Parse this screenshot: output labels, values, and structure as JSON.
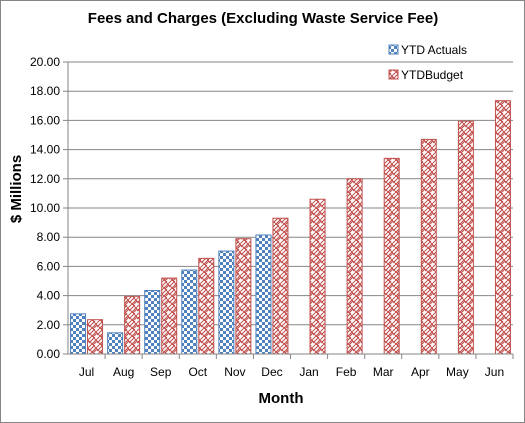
{
  "chart_data": {
    "type": "bar",
    "title": "Fees and Charges (Excluding  Waste Service Fee)",
    "xlabel": "Month",
    "ylabel": "$ Millions",
    "categories": [
      "Jul",
      "Aug",
      "Sep",
      "Oct",
      "Nov",
      "Dec",
      "Jan",
      "Feb",
      "Mar",
      "Apr",
      "May",
      "Jun"
    ],
    "series": [
      {
        "name": "YTD Actuals",
        "color": "#4f81bd",
        "pattern": "checker",
        "values": [
          2.75,
          1.45,
          4.35,
          5.75,
          7.05,
          8.15,
          null,
          null,
          null,
          null,
          null,
          null
        ]
      },
      {
        "name": "YTDBudget",
        "color": "#c0504d",
        "pattern": "weave",
        "values": [
          2.35,
          3.95,
          5.2,
          6.55,
          7.9,
          9.3,
          10.6,
          12.0,
          13.4,
          14.7,
          15.95,
          17.35
        ]
      }
    ],
    "ylim": [
      0,
      20
    ],
    "yticks": [
      "0.00",
      "2.00",
      "4.00",
      "6.00",
      "8.00",
      "10.00",
      "12.00",
      "14.00",
      "16.00",
      "18.00",
      "20.00"
    ],
    "grid": true,
    "legend": "top-right"
  }
}
